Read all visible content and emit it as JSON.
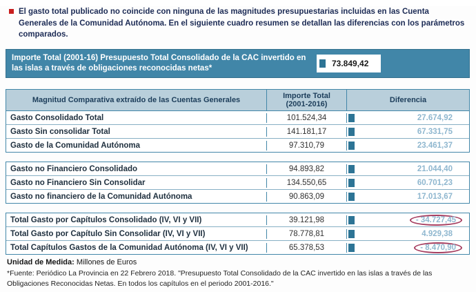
{
  "note": {
    "text": "El gasto total publicado no coincide con ninguna de las magnitudes presupuestarias incluidas en las Cuenta Generales de la Comunidad Autónoma. En el siguiente cuadro resumen se detallan las diferencias con los parámetros comparados."
  },
  "summary_band": {
    "label": "Importe Total (2001-16) Presupuesto Total  Consolidado de la CAC invertido en las islas a través de obligaciones reconocidas netas*",
    "value": "73.849,42"
  },
  "table": {
    "headers": [
      "Magnitud Comparativa extraído de las Cuentas Generales",
      "Importe Total (2001-2016)",
      "Diferencia"
    ],
    "rows": [
      {
        "label": "Gasto Consolidado Total",
        "importe": "101.524,34",
        "diferencia": "27.674,92"
      },
      {
        "label": "Gasto Sin consolidar Total",
        "importe": "141.181,17",
        "diferencia": "67.331,75"
      },
      {
        "label": "Gasto de la Comunidad Autónoma",
        "importe": "97.310,79",
        "diferencia": "23.461,37"
      },
      {
        "label": "Gasto no Financiero Consolidado",
        "importe": "94.893,82",
        "diferencia": "21.044,40"
      },
      {
        "label": "Gasto no Financiero Sin Consolidar",
        "importe": "134.550,65",
        "diferencia": "60.701,23"
      },
      {
        "label": "Gasto no financiero de la Comunidad Autónoma",
        "importe": "90.863,09",
        "diferencia": "17.013,67"
      },
      {
        "label": "Total Gasto por Capítulos Consolidado (IV, VI y VII)",
        "importe": "39.121,98",
        "diferencia": "- 34.727,45"
      },
      {
        "label": "Total Gasto por Capítulo Sin Consolidar (IV, VI y VII)",
        "importe": "78.778,81",
        "diferencia": "4.929,38"
      },
      {
        "label": "Total Capítulos Gastos de la Comunidad Autónoma (IV, VI y VII)",
        "importe": "65.378,53",
        "diferencia": "- 8.470,90"
      }
    ]
  },
  "footer": {
    "unit_label": "Unidad de Medida:",
    "unit_value": " Millones de Euros",
    "source": "*Fuente: Periódico La Provincia en 22 Febrero 2018. \"Presupuesto Total Consolidado de la CAC invertido en las islas a través de las Obligaciones Reconocidas Netas. En todos los capítulos en el periodo 2001-2016.\""
  },
  "colors": {
    "band_teal": "#4186a8",
    "header_bg": "#b9cfdb",
    "diferencia_text": "#8fb7cf",
    "marker_teal": "#2d7495",
    "bullet_red": "#c81e1e",
    "highlight_ellipse": "#a63d5f"
  }
}
